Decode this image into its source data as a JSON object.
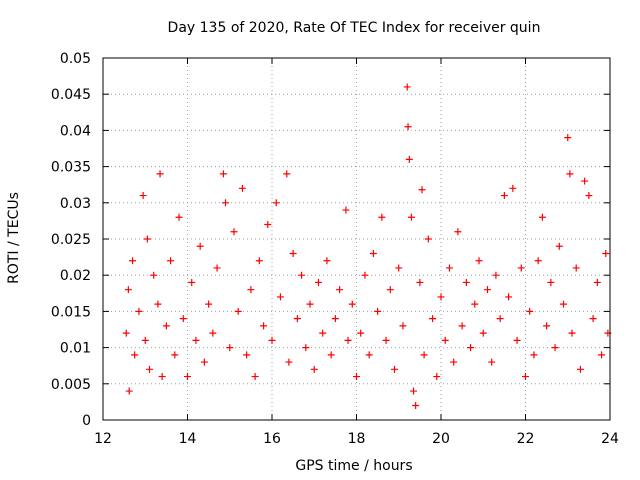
{
  "chart_data": {
    "type": "scatter",
    "title": "Day 135 of 2020, Rate Of TEC Index for receiver quin",
    "xlabel": "GPS time / hours",
    "ylabel": "ROTI / TECUs",
    "xlim": [
      12,
      24
    ],
    "ylim": [
      0,
      0.05
    ],
    "x_ticks": [
      "12",
      "14",
      "16",
      "18",
      "20",
      "22",
      "24"
    ],
    "y_ticks": [
      "0",
      "0.005",
      "0.01",
      "0.015",
      "0.02",
      "0.025",
      "0.03",
      "0.035",
      "0.04",
      "0.045",
      "0.05"
    ],
    "grid": true,
    "marker": "plus",
    "color": "#ff0000",
    "series": [
      {
        "points": [
          [
            12.55,
            0.012
          ],
          [
            12.6,
            0.018
          ],
          [
            12.62,
            0.004
          ],
          [
            12.7,
            0.022
          ],
          [
            12.75,
            0.009
          ],
          [
            12.85,
            0.015
          ],
          [
            12.95,
            0.031
          ],
          [
            13.0,
            0.011
          ],
          [
            13.05,
            0.025
          ],
          [
            13.1,
            0.007
          ],
          [
            13.2,
            0.02
          ],
          [
            13.3,
            0.016
          ],
          [
            13.35,
            0.034
          ],
          [
            13.4,
            0.006
          ],
          [
            13.5,
            0.013
          ],
          [
            13.6,
            0.022
          ],
          [
            13.7,
            0.009
          ],
          [
            13.8,
            0.028
          ],
          [
            13.9,
            0.014
          ],
          [
            14.0,
            0.006
          ],
          [
            14.1,
            0.019
          ],
          [
            14.2,
            0.011
          ],
          [
            14.3,
            0.024
          ],
          [
            14.4,
            0.008
          ],
          [
            14.5,
            0.016
          ],
          [
            14.6,
            0.012
          ],
          [
            14.7,
            0.021
          ],
          [
            14.85,
            0.034
          ],
          [
            14.9,
            0.03
          ],
          [
            15.0,
            0.01
          ],
          [
            15.1,
            0.026
          ],
          [
            15.2,
            0.015
          ],
          [
            15.3,
            0.032
          ],
          [
            15.4,
            0.009
          ],
          [
            15.5,
            0.018
          ],
          [
            15.6,
            0.006
          ],
          [
            15.7,
            0.022
          ],
          [
            15.8,
            0.013
          ],
          [
            15.9,
            0.027
          ],
          [
            16.0,
            0.011
          ],
          [
            16.1,
            0.03
          ],
          [
            16.2,
            0.017
          ],
          [
            16.35,
            0.034
          ],
          [
            16.4,
            0.008
          ],
          [
            16.5,
            0.023
          ],
          [
            16.6,
            0.014
          ],
          [
            16.7,
            0.02
          ],
          [
            16.8,
            0.01
          ],
          [
            16.9,
            0.016
          ],
          [
            17.0,
            0.007
          ],
          [
            17.1,
            0.019
          ],
          [
            17.2,
            0.012
          ],
          [
            17.3,
            0.022
          ],
          [
            17.4,
            0.009
          ],
          [
            17.5,
            0.014
          ],
          [
            17.6,
            0.018
          ],
          [
            17.75,
            0.029
          ],
          [
            17.8,
            0.011
          ],
          [
            17.9,
            0.016
          ],
          [
            18.0,
            0.006
          ],
          [
            18.1,
            0.012
          ],
          [
            18.2,
            0.02
          ],
          [
            18.3,
            0.009
          ],
          [
            18.4,
            0.023
          ],
          [
            18.5,
            0.015
          ],
          [
            18.6,
            0.028
          ],
          [
            18.7,
            0.011
          ],
          [
            18.8,
            0.018
          ],
          [
            18.9,
            0.007
          ],
          [
            19.0,
            0.021
          ],
          [
            19.1,
            0.013
          ],
          [
            19.2,
            0.046
          ],
          [
            19.22,
            0.0405
          ],
          [
            19.25,
            0.036
          ],
          [
            19.3,
            0.028
          ],
          [
            19.35,
            0.004
          ],
          [
            19.4,
            0.002
          ],
          [
            19.5,
            0.019
          ],
          [
            19.55,
            0.0318
          ],
          [
            19.6,
            0.009
          ],
          [
            19.7,
            0.025
          ],
          [
            19.8,
            0.014
          ],
          [
            19.9,
            0.006
          ],
          [
            20.0,
            0.017
          ],
          [
            20.1,
            0.011
          ],
          [
            20.2,
            0.021
          ],
          [
            20.3,
            0.008
          ],
          [
            20.4,
            0.026
          ],
          [
            20.5,
            0.013
          ],
          [
            20.6,
            0.019
          ],
          [
            20.7,
            0.01
          ],
          [
            20.8,
            0.016
          ],
          [
            20.9,
            0.022
          ],
          [
            21.0,
            0.012
          ],
          [
            21.1,
            0.018
          ],
          [
            21.2,
            0.008
          ],
          [
            21.3,
            0.02
          ],
          [
            21.4,
            0.014
          ],
          [
            21.5,
            0.031
          ],
          [
            21.6,
            0.017
          ],
          [
            21.7,
            0.032
          ],
          [
            21.8,
            0.011
          ],
          [
            21.9,
            0.021
          ],
          [
            22.0,
            0.006
          ],
          [
            22.1,
            0.015
          ],
          [
            22.2,
            0.009
          ],
          [
            22.3,
            0.022
          ],
          [
            22.4,
            0.028
          ],
          [
            22.5,
            0.013
          ],
          [
            22.6,
            0.019
          ],
          [
            22.7,
            0.01
          ],
          [
            22.8,
            0.024
          ],
          [
            22.9,
            0.016
          ],
          [
            23.0,
            0.039
          ],
          [
            23.05,
            0.034
          ],
          [
            23.1,
            0.012
          ],
          [
            23.2,
            0.021
          ],
          [
            23.3,
            0.007
          ],
          [
            23.4,
            0.033
          ],
          [
            23.5,
            0.031
          ],
          [
            23.6,
            0.014
          ],
          [
            23.7,
            0.019
          ],
          [
            23.8,
            0.009
          ],
          [
            23.9,
            0.023
          ],
          [
            23.95,
            0.012
          ]
        ]
      }
    ]
  }
}
